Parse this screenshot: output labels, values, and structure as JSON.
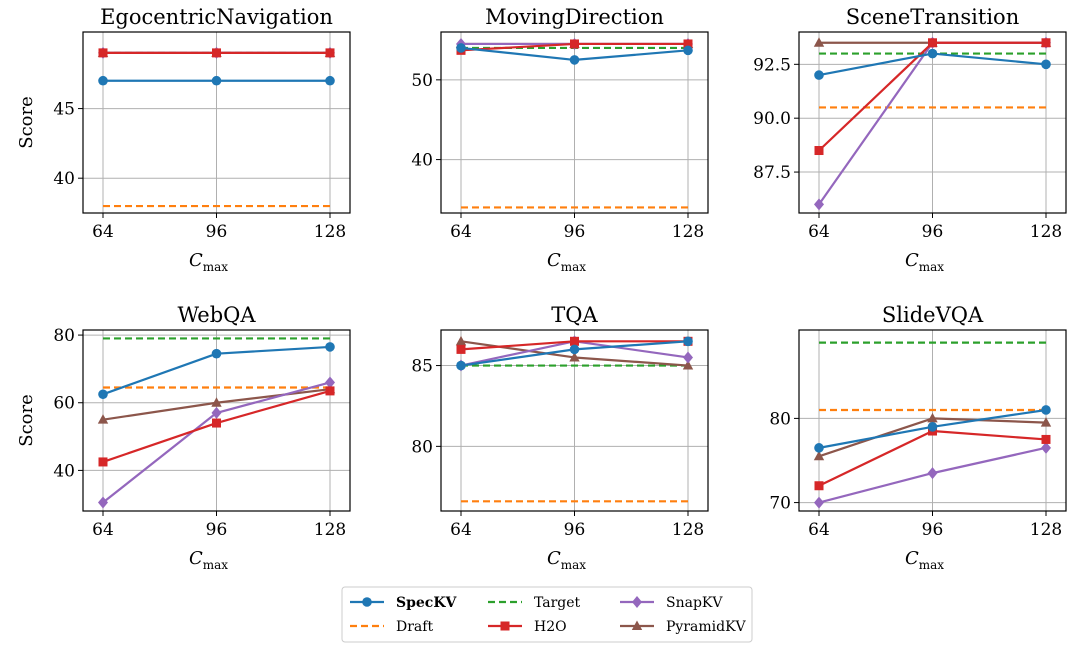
{
  "colors": {
    "SpecKV": "#1f77b4",
    "Draft": "#ff7f0e",
    "Target": "#2ca02c",
    "H2O": "#d62728",
    "SnapKV": "#9467bd",
    "PyramidKV": "#8c564b",
    "grid": "#b0b0b0"
  },
  "legend": {
    "entries": [
      {
        "name": "SpecKV",
        "style": "solid",
        "marker": "circle",
        "bold": true
      },
      {
        "name": "Draft",
        "style": "dashed",
        "marker": "none",
        "bold": false
      },
      {
        "name": "Target",
        "style": "dashed",
        "marker": "none",
        "bold": false
      },
      {
        "name": "H2O",
        "style": "solid",
        "marker": "square",
        "bold": false
      },
      {
        "name": "SnapKV",
        "style": "solid",
        "marker": "diamond",
        "bold": false
      },
      {
        "name": "PyramidKV",
        "style": "solid",
        "marker": "triangle",
        "bold": false
      }
    ]
  },
  "chart_data": [
    {
      "type": "line",
      "title": "EgocentricNavigation",
      "xlabel_main": "C",
      "xlabel_sub": "max",
      "ylabel": "Score",
      "x": [
        64,
        96,
        128
      ],
      "xticks": [
        "64",
        "96",
        "128"
      ],
      "ylim": [
        37.5,
        50.5
      ],
      "yticks": [
        40,
        45
      ],
      "ytick_labels": [
        "40",
        "45"
      ],
      "series": [
        {
          "name": "SpecKV",
          "values": [
            47,
            47,
            47
          ]
        },
        {
          "name": "Draft",
          "values": [
            38,
            38,
            38
          ]
        },
        {
          "name": "Target",
          "values": [
            49,
            49,
            49
          ]
        },
        {
          "name": "H2O",
          "values": [
            49,
            49,
            49
          ]
        },
        {
          "name": "SnapKV",
          "values": [
            49,
            49,
            49
          ]
        },
        {
          "name": "PyramidKV",
          "values": [
            49,
            49,
            49
          ]
        }
      ]
    },
    {
      "type": "line",
      "title": "MovingDirection",
      "xlabel_main": "C",
      "xlabel_sub": "max",
      "ylabel": "",
      "x": [
        64,
        96,
        128
      ],
      "xticks": [
        "64",
        "96",
        "128"
      ],
      "ylim": [
        33.3,
        56.0
      ],
      "yticks": [
        40,
        50
      ],
      "ytick_labels": [
        "40",
        "50"
      ],
      "series": [
        {
          "name": "SpecKV",
          "values": [
            54,
            52.5,
            53.7
          ]
        },
        {
          "name": "Draft",
          "values": [
            34,
            34,
            34
          ]
        },
        {
          "name": "Target",
          "values": [
            54,
            54,
            54
          ]
        },
        {
          "name": "H2O",
          "values": [
            53.7,
            54.5,
            54.5
          ]
        },
        {
          "name": "SnapKV",
          "values": [
            54.5,
            54.5,
            54.5
          ]
        },
        {
          "name": "PyramidKV",
          "values": [
            54.5,
            54.5,
            54.5
          ]
        }
      ]
    },
    {
      "type": "line",
      "title": "SceneTransition",
      "xlabel_main": "C",
      "xlabel_sub": "max",
      "ylabel": "",
      "x": [
        64,
        96,
        128
      ],
      "xticks": [
        "64",
        "96",
        "128"
      ],
      "ylim": [
        85.6,
        94.0
      ],
      "yticks": [
        87.5,
        90.0,
        92.5
      ],
      "ytick_labels": [
        "87.5",
        "90.0",
        "92.5"
      ],
      "series": [
        {
          "name": "SpecKV",
          "values": [
            92,
            93,
            92.5
          ]
        },
        {
          "name": "Draft",
          "values": [
            90.5,
            90.5,
            90.5
          ]
        },
        {
          "name": "Target",
          "values": [
            93,
            93,
            93
          ]
        },
        {
          "name": "H2O",
          "values": [
            88.5,
            93.5,
            93.5
          ]
        },
        {
          "name": "SnapKV",
          "values": [
            86,
            93.5,
            93.5
          ]
        },
        {
          "name": "PyramidKV",
          "values": [
            93.5,
            93.5,
            93.5
          ]
        }
      ]
    },
    {
      "type": "line",
      "title": "WebQA",
      "xlabel_main": "C",
      "xlabel_sub": "max",
      "ylabel": "Score",
      "x": [
        64,
        96,
        128
      ],
      "xticks": [
        "64",
        "96",
        "128"
      ],
      "ylim": [
        28,
        81.5
      ],
      "yticks": [
        40,
        60,
        80
      ],
      "ytick_labels": [
        "40",
        "60",
        "80"
      ],
      "series": [
        {
          "name": "SpecKV",
          "values": [
            62.5,
            74.5,
            76.5
          ]
        },
        {
          "name": "Draft",
          "values": [
            64.5,
            64.5,
            64.5
          ]
        },
        {
          "name": "Target",
          "values": [
            79,
            79,
            79
          ]
        },
        {
          "name": "H2O",
          "values": [
            42.5,
            54,
            63.5
          ]
        },
        {
          "name": "SnapKV",
          "values": [
            30.5,
            57,
            66
          ]
        },
        {
          "name": "PyramidKV",
          "values": [
            55,
            60,
            64
          ]
        }
      ]
    },
    {
      "type": "line",
      "title": "TQA",
      "xlabel_main": "C",
      "xlabel_sub": "max",
      "ylabel": "",
      "x": [
        64,
        96,
        128
      ],
      "xticks": [
        "64",
        "96",
        "128"
      ],
      "ylim": [
        76,
        87.2
      ],
      "yticks": [
        80,
        85
      ],
      "ytick_labels": [
        "80",
        "85"
      ],
      "series": [
        {
          "name": "SpecKV",
          "values": [
            85,
            86,
            86.5
          ]
        },
        {
          "name": "Draft",
          "values": [
            76.6,
            76.6,
            76.6
          ]
        },
        {
          "name": "Target",
          "values": [
            85,
            85,
            85
          ]
        },
        {
          "name": "H2O",
          "values": [
            86,
            86.5,
            86.5
          ]
        },
        {
          "name": "SnapKV",
          "values": [
            85,
            86.5,
            85.5
          ]
        },
        {
          "name": "PyramidKV",
          "values": [
            86.5,
            85.5,
            85
          ]
        }
      ]
    },
    {
      "type": "line",
      "title": "SlideVQA",
      "xlabel_main": "C",
      "xlabel_sub": "max",
      "ylabel": "",
      "x": [
        64,
        96,
        128
      ],
      "xticks": [
        "64",
        "96",
        "128"
      ],
      "ylim": [
        69,
        90.5
      ],
      "yticks": [
        70,
        80
      ],
      "ytick_labels": [
        "70",
        "80"
      ],
      "series": [
        {
          "name": "SpecKV",
          "values": [
            76.5,
            79,
            81
          ]
        },
        {
          "name": "Draft",
          "values": [
            81,
            81,
            81
          ]
        },
        {
          "name": "Target",
          "values": [
            89,
            89,
            89
          ]
        },
        {
          "name": "H2O",
          "values": [
            72,
            78.5,
            77.5
          ]
        },
        {
          "name": "SnapKV",
          "values": [
            70,
            73.5,
            76.5
          ]
        },
        {
          "name": "PyramidKV",
          "values": [
            75.5,
            80,
            79.5
          ]
        }
      ]
    }
  ]
}
